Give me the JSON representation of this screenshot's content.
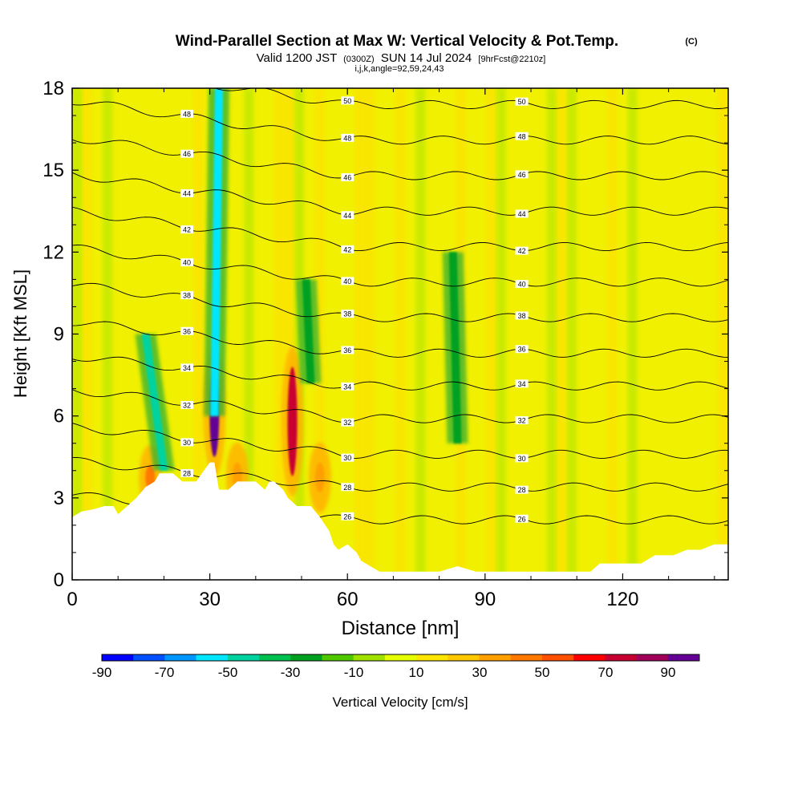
{
  "title": {
    "main": "Wind-Parallel Section at Max W: Vertical Velocity & Pot.Temp.",
    "copyright": "(C)",
    "valid_prefix": "Valid 1200 JST",
    "valid_utc": "(0300Z)",
    "valid_date": "SUN 14 Jul 2024",
    "forecast": "[9hrFcst@2210z]",
    "indices": "i,j,k,angle=92,59,24,43"
  },
  "chart_data": {
    "type": "heatmap",
    "xlabel": "Distance [nm]",
    "ylabel": "Height [Kft MSL]",
    "xlim": [
      0,
      143
    ],
    "ylim": [
      0,
      18
    ],
    "xticks": [
      "0",
      "30",
      "60",
      "90",
      "120"
    ],
    "xtick_values": [
      0,
      30,
      60,
      90,
      120
    ],
    "yticks": [
      "0",
      "3",
      "6",
      "9",
      "12",
      "15",
      "18"
    ],
    "ytick_values": [
      0,
      3,
      6,
      9,
      12,
      15,
      18
    ],
    "colorbar": {
      "label": "Vertical Velocity [cm/s]",
      "tick_labels": [
        "-90",
        "-70",
        "-50",
        "-30",
        "-10",
        "10",
        "30",
        "50",
        "70",
        "90"
      ],
      "tick_values": [
        -90,
        -70,
        -50,
        -30,
        -10,
        10,
        30,
        50,
        70,
        90
      ],
      "colors": [
        "#0000ff",
        "#0050ff",
        "#0096ff",
        "#00e6ff",
        "#00d2a0",
        "#00c050",
        "#00a020",
        "#50c800",
        "#a0e100",
        "#e6ff00",
        "#ffe600",
        "#ffc800",
        "#ffa000",
        "#ff7800",
        "#ff5000",
        "#ff0000",
        "#c80032",
        "#a0005a",
        "#640096"
      ]
    },
    "updrafts": [
      {
        "x": 31,
        "bottom": 4.5,
        "top": 7.8,
        "peak": 90
      },
      {
        "x": 48,
        "bottom": 3.8,
        "top": 7.8,
        "peak": 70
      },
      {
        "x": 17,
        "bottom": 3.3,
        "top": 4.2,
        "peak": 40
      },
      {
        "x": 54,
        "bottom": 3.2,
        "top": 4.3,
        "peak": 30
      },
      {
        "x": 36,
        "bottom": 3.3,
        "top": 4.3,
        "peak": 30
      }
    ],
    "downdrafts": [
      {
        "x0": 31,
        "y0": 6.0,
        "x1": 32,
        "y1": 18,
        "peak": -60
      },
      {
        "x0": 20,
        "y0": 4.0,
        "x1": 16,
        "y1": 9.0,
        "peak": -50
      },
      {
        "x0": 52,
        "y0": 7.2,
        "x1": 51,
        "y1": 11.0,
        "peak": -35
      },
      {
        "x0": 84,
        "y0": 5.0,
        "x1": 83,
        "y1": 12.0,
        "peak": -30
      }
    ],
    "isentropes": {
      "values": [
        26,
        28,
        30,
        32,
        34,
        36,
        38,
        40,
        42,
        44,
        46,
        48,
        50
      ],
      "labeled_heights": {
        "26": 2.2,
        "28": 3.4,
        "30": 4.6,
        "32": 5.9,
        "34": 7.1,
        "36": 8.3,
        "38": 9.6,
        "40": 10.9,
        "42": 12.2,
        "44": 13.5,
        "46": 14.8,
        "48": 16.1,
        "50": 17.4
      }
    },
    "terrain": [
      [
        0,
        2.3
      ],
      [
        2,
        2.5
      ],
      [
        5,
        2.6
      ],
      [
        7,
        2.7
      ],
      [
        9,
        2.7
      ],
      [
        10,
        2.4
      ],
      [
        12,
        2.7
      ],
      [
        14,
        3.0
      ],
      [
        16,
        3.4
      ],
      [
        18,
        3.6
      ],
      [
        19,
        3.9
      ],
      [
        22,
        3.9
      ],
      [
        24,
        3.6
      ],
      [
        27,
        3.6
      ],
      [
        30,
        4.3
      ],
      [
        31,
        4.3
      ],
      [
        32,
        3.3
      ],
      [
        34,
        3.3
      ],
      [
        36,
        3.6
      ],
      [
        40,
        3.6
      ],
      [
        42,
        3.3
      ],
      [
        43,
        3.6
      ],
      [
        44,
        3.6
      ],
      [
        46,
        3.3
      ],
      [
        47,
        3.0
      ],
      [
        49,
        2.7
      ],
      [
        52,
        2.7
      ],
      [
        54,
        2.3
      ],
      [
        56,
        1.8
      ],
      [
        57,
        1.3
      ],
      [
        58,
        1.1
      ],
      [
        60,
        1.3
      ],
      [
        62,
        1.0
      ],
      [
        63,
        0.7
      ],
      [
        65,
        0.5
      ],
      [
        67,
        0.3
      ],
      [
        80,
        0.3
      ],
      [
        82,
        0.4
      ],
      [
        84,
        0.5
      ],
      [
        88,
        0.3
      ],
      [
        113,
        0.3
      ],
      [
        115,
        0.6
      ],
      [
        124,
        0.6
      ],
      [
        127,
        0.9
      ],
      [
        131,
        0.9
      ],
      [
        134,
        1.1
      ],
      [
        137,
        1.1
      ],
      [
        140,
        1.3
      ],
      [
        143,
        1.3
      ]
    ]
  }
}
